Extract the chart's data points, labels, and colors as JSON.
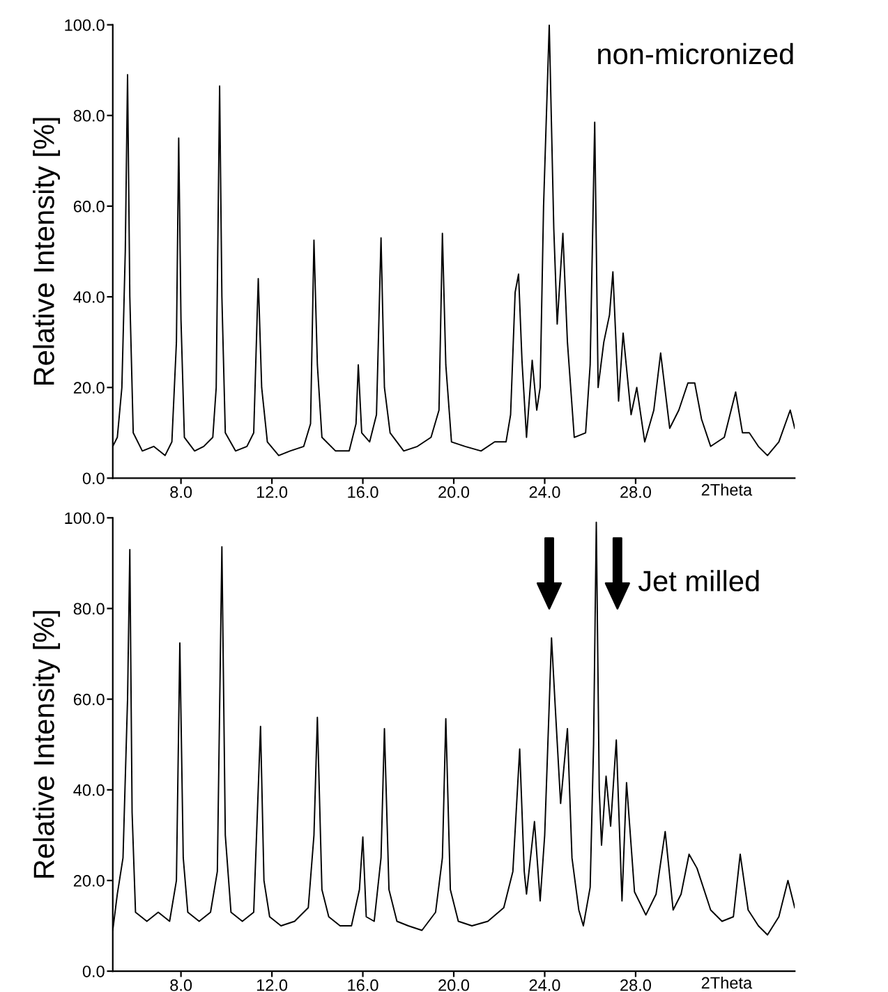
{
  "chart_data": [
    {
      "type": "line",
      "xlabel": "2Theta",
      "ylabel": "Relative Intensity [%]",
      "annotations": [
        "non-micronized"
      ],
      "xlim": [
        5,
        35
      ],
      "ylim": [
        0,
        100
      ],
      "xticks": [
        {
          "value": 8,
          "label": "8.0"
        },
        {
          "value": 12,
          "label": "12.0"
        },
        {
          "value": 16,
          "label": "16.0"
        },
        {
          "value": 20,
          "label": "20.0"
        },
        {
          "value": 24,
          "label": "24.0"
        },
        {
          "value": 28,
          "label": "28.0"
        }
      ],
      "yticks": [
        {
          "value": 0,
          "label": "0.0"
        },
        {
          "value": 20,
          "label": "20.0"
        },
        {
          "value": 40,
          "label": "40.0"
        },
        {
          "value": 60,
          "label": "60.0"
        },
        {
          "value": 80,
          "label": "80.0"
        },
        {
          "value": 100,
          "label": "100.0"
        }
      ],
      "series": [
        {
          "color": "#000000",
          "x": [
            5.0,
            5.2,
            5.4,
            5.55,
            5.65,
            5.75,
            5.9,
            6.3,
            6.8,
            7.3,
            7.6,
            7.8,
            7.9,
            8.0,
            8.15,
            8.6,
            9.0,
            9.4,
            9.55,
            9.7,
            9.8,
            9.95,
            10.4,
            10.9,
            11.2,
            11.4,
            11.55,
            11.8,
            12.3,
            12.8,
            13.4,
            13.7,
            13.85,
            14.0,
            14.2,
            14.8,
            15.4,
            15.7,
            15.8,
            15.95,
            16.3,
            16.6,
            16.8,
            16.95,
            17.2,
            17.8,
            18.4,
            19.0,
            19.35,
            19.5,
            19.65,
            19.9,
            20.5,
            21.2,
            21.8,
            22.3,
            22.5,
            22.7,
            22.85,
            23.0,
            23.2,
            23.45,
            23.65,
            23.8,
            23.95,
            24.2,
            24.4,
            24.55,
            24.8,
            25.0,
            25.3,
            25.8,
            26.0,
            26.2,
            26.35,
            26.6,
            26.85,
            27.0,
            27.25,
            27.45,
            27.8,
            28.05,
            28.4,
            28.8,
            29.1,
            29.5,
            29.9,
            30.3,
            30.6,
            30.9,
            31.3,
            31.9,
            32.4,
            32.7,
            33.0,
            33.4,
            33.8,
            34.3,
            34.8,
            35.0
          ],
          "values": [
            7,
            9,
            20,
            50,
            89,
            40,
            10,
            6,
            7,
            5,
            8,
            30,
            75,
            35,
            9,
            6,
            7,
            9,
            20,
            86.5,
            40,
            10,
            6,
            7,
            10,
            44,
            20,
            8,
            5,
            6,
            7,
            12,
            52.5,
            25,
            9,
            6,
            6,
            12,
            25,
            10,
            8,
            14,
            53,
            20,
            10,
            6,
            7,
            9,
            15,
            54,
            25,
            8,
            7,
            6,
            8,
            8,
            14,
            41,
            45,
            26,
            9,
            26,
            15,
            20,
            60,
            100,
            55,
            34,
            54,
            30,
            9,
            10,
            25,
            78.5,
            20,
            30,
            36,
            45.5,
            17,
            32,
            14,
            20,
            8,
            15,
            27.6,
            11,
            15,
            21,
            21,
            13,
            7,
            9,
            19,
            10,
            10,
            7,
            5,
            8,
            15,
            11
          ]
        }
      ]
    },
    {
      "type": "line",
      "xlabel": "2Theta",
      "ylabel": "Relative Intensity [%]",
      "annotations": [
        "Jet milled"
      ],
      "xlim": [
        5,
        35
      ],
      "ylim": [
        0,
        100
      ],
      "xticks": [
        {
          "value": 8,
          "label": "8.0"
        },
        {
          "value": 12,
          "label": "12.0"
        },
        {
          "value": 16,
          "label": "16.0"
        },
        {
          "value": 20,
          "label": "20.0"
        },
        {
          "value": 24,
          "label": "24.0"
        },
        {
          "value": 28,
          "label": "28.0"
        }
      ],
      "yticks": [
        {
          "value": 0,
          "label": "0.0"
        },
        {
          "value": 20,
          "label": "20.0"
        },
        {
          "value": 40,
          "label": "40.0"
        },
        {
          "value": 60,
          "label": "60.0"
        },
        {
          "value": 80,
          "label": "80.0"
        },
        {
          "value": 100,
          "label": "100.0"
        }
      ],
      "series": [
        {
          "color": "#000000",
          "x": [
            5.0,
            5.2,
            5.45,
            5.65,
            5.75,
            5.85,
            6.0,
            6.5,
            7.0,
            7.5,
            7.8,
            7.95,
            8.1,
            8.3,
            8.8,
            9.3,
            9.6,
            9.8,
            9.95,
            10.2,
            10.7,
            11.2,
            11.5,
            11.65,
            11.9,
            12.4,
            13.0,
            13.6,
            13.85,
            14.0,
            14.2,
            14.5,
            15.0,
            15.5,
            15.85,
            16.0,
            16.15,
            16.5,
            16.8,
            16.95,
            17.15,
            17.5,
            18.0,
            18.6,
            19.2,
            19.5,
            19.65,
            19.85,
            20.2,
            20.8,
            21.5,
            22.2,
            22.6,
            22.9,
            23.1,
            23.2,
            23.55,
            23.8,
            24.0,
            24.3,
            24.5,
            24.7,
            25.0,
            25.2,
            25.5,
            25.7,
            26.0,
            26.15,
            26.27,
            26.4,
            26.5,
            26.7,
            26.9,
            27.15,
            27.4,
            27.6,
            27.95,
            28.45,
            28.9,
            29.3,
            29.65,
            30.0,
            30.35,
            30.7,
            31.3,
            31.8,
            32.3,
            32.6,
            32.95,
            33.4,
            33.8,
            34.3,
            34.7,
            35.0
          ],
          "values": [
            9,
            17,
            25,
            60,
            93,
            35,
            13,
            11,
            13,
            11,
            20,
            72.4,
            25,
            13,
            11,
            13,
            22,
            93.6,
            30,
            13,
            11,
            13,
            54,
            20,
            12,
            10,
            11,
            14,
            30,
            56,
            18,
            12,
            10,
            10,
            18,
            29.6,
            12,
            11,
            25,
            53.5,
            18,
            11,
            10,
            9,
            13,
            25,
            55.7,
            18,
            11,
            10,
            11,
            14,
            22,
            49,
            22,
            17,
            33,
            15.5,
            30,
            73.5,
            55,
            37,
            53.5,
            25,
            13.5,
            10,
            18.5,
            50,
            99,
            40,
            27.8,
            43,
            32,
            51,
            15.5,
            41.6,
            17.5,
            12.4,
            17,
            30.8,
            13.5,
            17,
            25.8,
            22.7,
            13.5,
            11,
            12,
            25.8,
            13.5,
            10,
            8,
            12,
            20,
            14
          ]
        }
      ]
    }
  ]
}
